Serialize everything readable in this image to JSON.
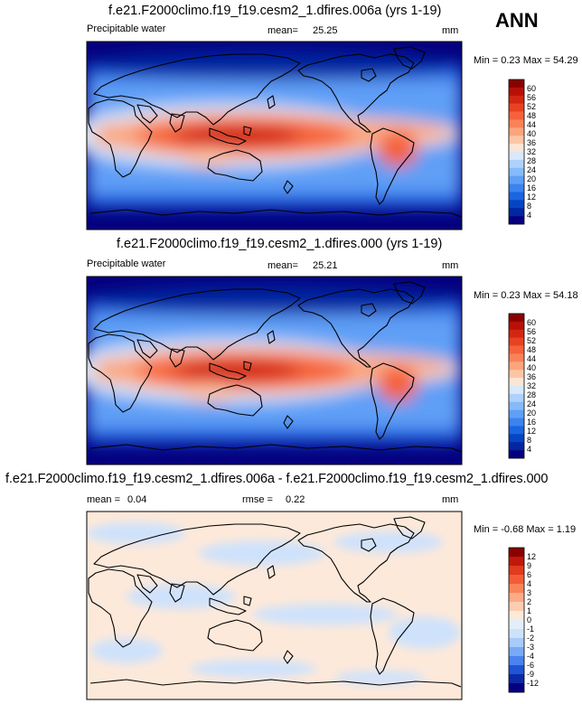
{
  "season": "ANN",
  "colors": {
    "abs": [
      "#05007e",
      "#0026a0",
      "#0644c4",
      "#1b65e0",
      "#3b83ef",
      "#5f9ff6",
      "#85bbfa",
      "#aed2fb",
      "#d8e9fb",
      "#fbe5d4",
      "#fcc6a6",
      "#fca57c",
      "#fa8259",
      "#f5623b",
      "#e74323",
      "#d22612",
      "#b81006",
      "#8a0000"
    ],
    "diff": [
      "#05007e",
      "#0a2aa6",
      "#1f55d3",
      "#4a83ee",
      "#79a9f7",
      "#a7cbfb",
      "#cfe2fb",
      "#e3eefb",
      "#fde9da",
      "#fccdb1",
      "#fcab86",
      "#fa845a",
      "#f25d35",
      "#df3b1c",
      "#c0190a",
      "#8a0000"
    ]
  },
  "chart_data": [
    {
      "type": "heatmap",
      "title": "f.e21.F2000climo.f19_f19.cesm2_1.dfires.006a (yrs 1-19)",
      "variable": "Precipitable water",
      "mean_label": "mean=",
      "mean": "25.25",
      "units": "mm",
      "minmax": "Min =   0.23 Max =  54.29",
      "levels": [
        "60",
        "56",
        "52",
        "48",
        "44",
        "40",
        "36",
        "32",
        "28",
        "24",
        "20",
        "16",
        "12",
        "8",
        "4"
      ]
    },
    {
      "type": "heatmap",
      "title": "f.e21.F2000climo.f19_f19.cesm2_1.dfires.000 (yrs 1-19)",
      "variable": "Precipitable water",
      "mean_label": "mean=",
      "mean": "25.21",
      "units": "mm",
      "minmax": "Min =   0.23 Max =  54.18",
      "levels": [
        "60",
        "56",
        "52",
        "48",
        "44",
        "40",
        "36",
        "32",
        "28",
        "24",
        "20",
        "16",
        "12",
        "8",
        "4"
      ]
    },
    {
      "type": "heatmap",
      "title": "f.e21.F2000climo.f19_f19.cesm2_1.dfires.006a - f.e21.F2000climo.f19_f19.cesm2_1.dfires.000",
      "mean_label": "mean =",
      "mean": "0.04",
      "rmse_label": "rmse =",
      "rmse": "0.22",
      "units": "mm",
      "minmax": "Min =  -0.68 Max =   1.19",
      "levels": [
        "12",
        "9",
        "6",
        "4",
        "3",
        "2",
        "1",
        "0",
        "-1",
        "-2",
        "-3",
        "-4",
        "-6",
        "-9",
        "-12"
      ]
    }
  ]
}
